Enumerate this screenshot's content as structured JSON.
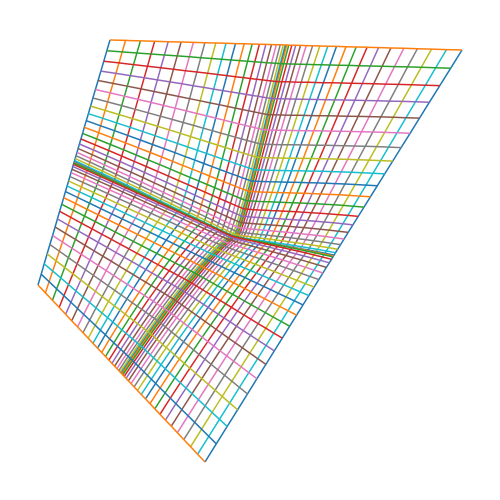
{
  "line_colors": [
    "#1f77b4",
    "#ff7f0e",
    "#2ca02c",
    "#d62728",
    "#9467bd",
    "#8c564b",
    "#e377c2",
    "#7f7f7f",
    "#bcbd22",
    "#17becf"
  ]
}
